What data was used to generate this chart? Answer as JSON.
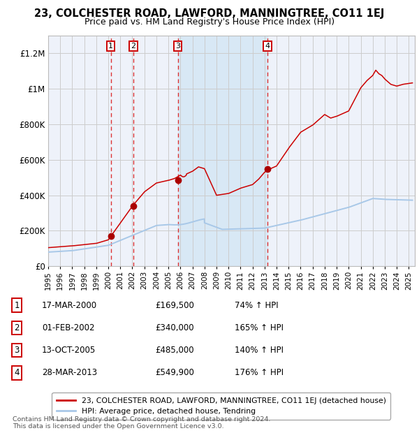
{
  "title": "23, COLCHESTER ROAD, LAWFORD, MANNINGTREE, CO11 1EJ",
  "subtitle": "Price paid vs. HM Land Registry's House Price Index (HPI)",
  "xlim": [
    1995.0,
    2025.5
  ],
  "ylim": [
    0,
    1300000
  ],
  "yticks": [
    0,
    200000,
    400000,
    600000,
    800000,
    1000000,
    1200000
  ],
  "ytick_labels": [
    "£0",
    "£200K",
    "£400K",
    "£600K",
    "£800K",
    "£1M",
    "£1.2M"
  ],
  "xtick_years": [
    1995,
    1996,
    1997,
    1998,
    1999,
    2000,
    2001,
    2002,
    2003,
    2004,
    2005,
    2006,
    2007,
    2008,
    2009,
    2010,
    2011,
    2012,
    2013,
    2014,
    2015,
    2016,
    2017,
    2018,
    2019,
    2020,
    2021,
    2022,
    2023,
    2024,
    2025
  ],
  "bg_color": "#ffffff",
  "plot_bg_color": "#eef2fa",
  "grid_color": "#cccccc",
  "hpi_color": "#a8c8e8",
  "sale_color": "#cc0000",
  "sale_dot_color": "#aa0000",
  "shade_color": "#d8e8f5",
  "dashed_line_color": "#dd3333",
  "legend_box_color": "#ffffff",
  "legend_border_color": "#aaaaaa",
  "transactions": [
    {
      "num": 1,
      "date_num": 2000.21,
      "price": 169500,
      "label": "17-MAR-2000",
      "pct": "74%",
      "arrow": "↑"
    },
    {
      "num": 2,
      "date_num": 2002.08,
      "price": 340000,
      "label": "01-FEB-2002",
      "pct": "165%",
      "arrow": "↑"
    },
    {
      "num": 3,
      "date_num": 2005.78,
      "price": 485000,
      "label": "13-OCT-2005",
      "pct": "140%",
      "arrow": "↑"
    },
    {
      "num": 4,
      "date_num": 2013.24,
      "price": 549900,
      "label": "28-MAR-2013",
      "pct": "176%",
      "arrow": "↑"
    }
  ],
  "footer1": "Contains HM Land Registry data © Crown copyright and database right 2024.",
  "footer2": "This data is licensed under the Open Government Licence v3.0.",
  "legend_line1": "23, COLCHESTER ROAD, LAWFORD, MANNINGTREE, CO11 1EJ (detached house)",
  "legend_line2": "HPI: Average price, detached house, Tendring"
}
